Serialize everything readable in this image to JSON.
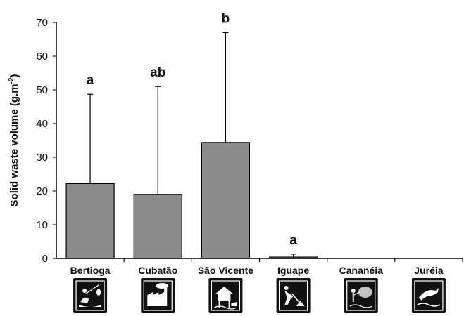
{
  "chart_data": {
    "type": "bar",
    "ylabel": "Solid waste volume (g.m",
    "ylabel_sup": "-2",
    "ylabel_tail": ")",
    "ylim": [
      0,
      70
    ],
    "yticks": [
      "0",
      "10",
      "20",
      "30",
      "40",
      "50",
      "60",
      "70"
    ],
    "categories": [
      "Bertioga",
      "Cubatão",
      "São Vicente",
      "Iguape",
      "Cananéia",
      "Juréia"
    ],
    "values": [
      22.2,
      19.0,
      34.4,
      0.4,
      0,
      0
    ],
    "error_upper": [
      48.7,
      51.0,
      67.0,
      1.3,
      null,
      null
    ],
    "significance": [
      "a",
      "ab",
      "b",
      "a",
      "",
      ""
    ],
    "bar_color": "#8c8c8c",
    "grid": false,
    "icons": [
      "fishing-icon",
      "factory-icon",
      "stilt-house-icon",
      "digging-icon",
      "net-fishing-icon",
      "dolphin-icon"
    ]
  }
}
